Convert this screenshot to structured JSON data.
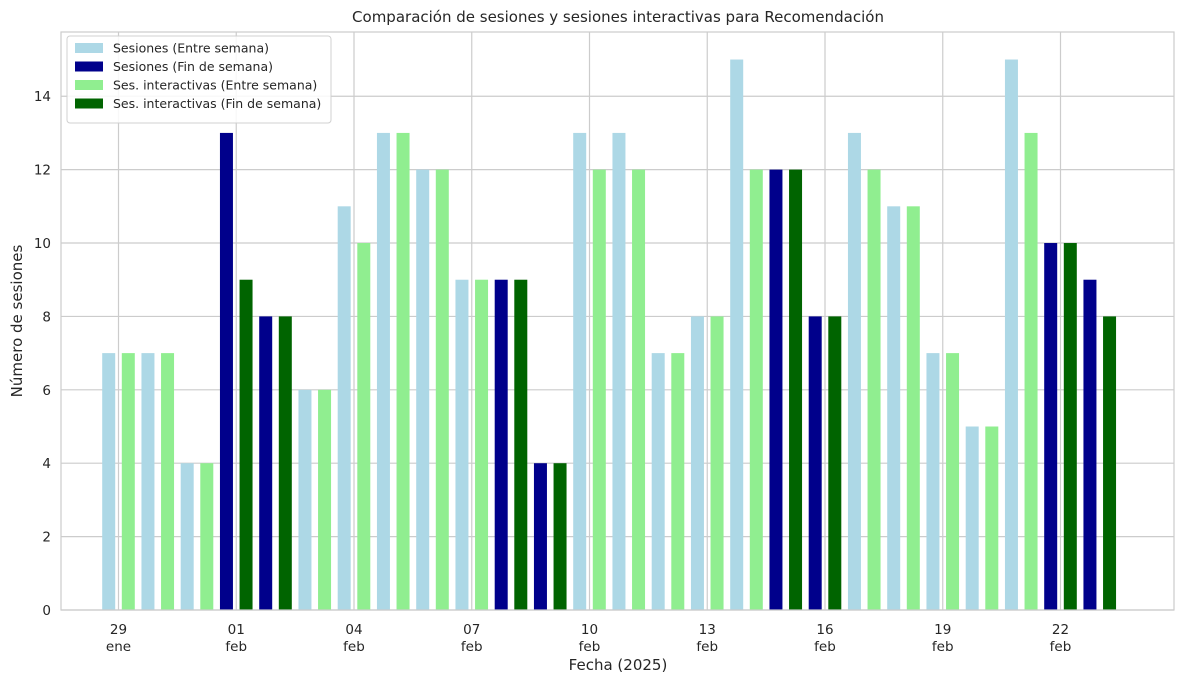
{
  "chart_data": {
    "type": "bar",
    "title": "Comparación de sesiones y sesiones interactivas para Recomendación",
    "xlabel": "Fecha (2025)",
    "ylabel": "Número de sesiones",
    "ylim": [
      0,
      15.75
    ],
    "yticks": [
      0,
      2,
      4,
      6,
      8,
      10,
      12,
      14
    ],
    "grid": true,
    "legend_position": "top-left",
    "dates": [
      "2025-01-29",
      "2025-01-30",
      "2025-01-31",
      "2025-02-01",
      "2025-02-02",
      "2025-02-03",
      "2025-02-04",
      "2025-02-05",
      "2025-02-06",
      "2025-02-07",
      "2025-02-08",
      "2025-02-09",
      "2025-02-10",
      "2025-02-11",
      "2025-02-12",
      "2025-02-13",
      "2025-02-14",
      "2025-02-15",
      "2025-02-16",
      "2025-02-17",
      "2025-02-18",
      "2025-02-19",
      "2025-02-20",
      "2025-02-21",
      "2025-02-22",
      "2025-02-23"
    ],
    "xticks": [
      {
        "date": "2025-01-29",
        "day": "29",
        "month": "ene"
      },
      {
        "date": "2025-02-01",
        "day": "01",
        "month": "feb"
      },
      {
        "date": "2025-02-04",
        "day": "04",
        "month": "feb"
      },
      {
        "date": "2025-02-07",
        "day": "07",
        "month": "feb"
      },
      {
        "date": "2025-02-10",
        "day": "10",
        "month": "feb"
      },
      {
        "date": "2025-02-13",
        "day": "13",
        "month": "feb"
      },
      {
        "date": "2025-02-16",
        "day": "16",
        "month": "feb"
      },
      {
        "date": "2025-02-19",
        "day": "19",
        "month": "feb"
      },
      {
        "date": "2025-02-22",
        "day": "22",
        "month": "feb"
      }
    ],
    "weekend": [
      false,
      false,
      false,
      true,
      true,
      false,
      false,
      false,
      false,
      false,
      true,
      true,
      false,
      false,
      false,
      false,
      false,
      true,
      true,
      false,
      false,
      false,
      false,
      false,
      true,
      true
    ],
    "sessions": [
      7,
      7,
      4,
      13,
      8,
      6,
      11,
      13,
      12,
      9,
      9,
      4,
      13,
      13,
      7,
      8,
      15,
      12,
      8,
      13,
      11,
      7,
      5,
      15,
      10,
      9
    ],
    "interactive_sessions": [
      7,
      7,
      4,
      9,
      8,
      6,
      10,
      13,
      12,
      9,
      9,
      4,
      12,
      12,
      7,
      8,
      12,
      12,
      8,
      12,
      11,
      7,
      5,
      13,
      10,
      8
    ],
    "series": [
      {
        "name": "Sesiones (Entre semana)",
        "color": "#add8e6"
      },
      {
        "name": "Sesiones (Fin de semana)",
        "color": "#00008b"
      },
      {
        "name": "Ses. interactivas (Entre semana)",
        "color": "#90ee90"
      },
      {
        "name": "Ses. interactivas (Fin de semana)",
        "color": "#006400"
      }
    ]
  }
}
